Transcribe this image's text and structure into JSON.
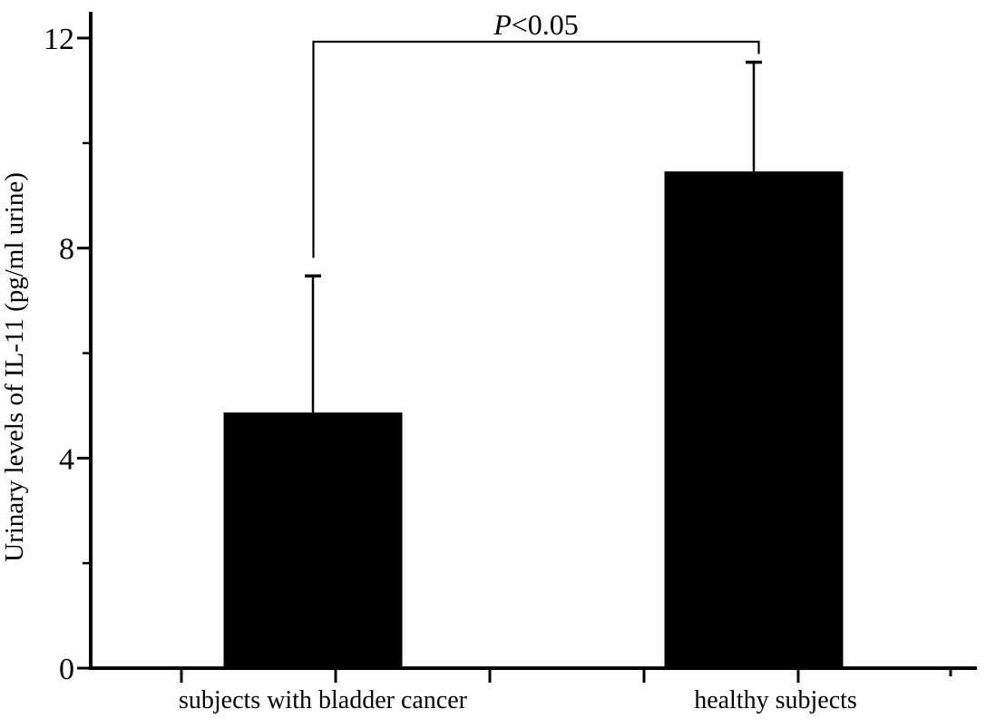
{
  "figure": {
    "background": "#ffffff",
    "ink": "#000000"
  },
  "chart_data": {
    "type": "bar",
    "title": "",
    "xlabel": "",
    "ylabel": "Urinary levels of IL-11 (pg/ml urine)",
    "categories": [
      "subjects with bladder cancer",
      "healthy subjects"
    ],
    "series": [
      {
        "name": "Urinary IL-11",
        "values": [
          4.87,
          9.46
        ],
        "error_plus": [
          2.6,
          2.08
        ]
      }
    ],
    "bar_color": "#000000",
    "ylim": [
      0,
      12
    ],
    "yticks": [
      0,
      4,
      8,
      12
    ],
    "ytick_labels": [
      "0",
      "4",
      "8",
      "12"
    ],
    "yticks_minor": [
      2,
      6,
      10
    ],
    "grid": false,
    "legend": "none",
    "annotation": {
      "label": "P<0.05",
      "italic_part": "P",
      "rest_part": "<0.05",
      "connects": [
        0,
        1
      ]
    }
  }
}
